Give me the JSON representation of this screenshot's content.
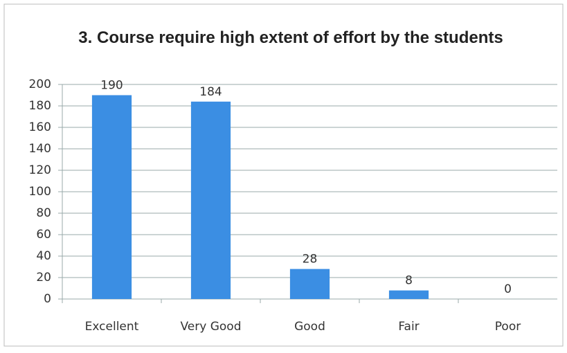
{
  "chart_data": {
    "type": "bar",
    "title": "3. Course require high extent of effort by the students",
    "categories": [
      "Excellent",
      "Very Good",
      "Good",
      "Fair",
      "Poor"
    ],
    "values": [
      190,
      184,
      28,
      8,
      0
    ],
    "color": "#3b8ee3",
    "ylim": [
      0,
      200
    ],
    "yticks": [
      0,
      20,
      40,
      60,
      80,
      100,
      120,
      140,
      160,
      180,
      200
    ],
    "grid": true
  }
}
